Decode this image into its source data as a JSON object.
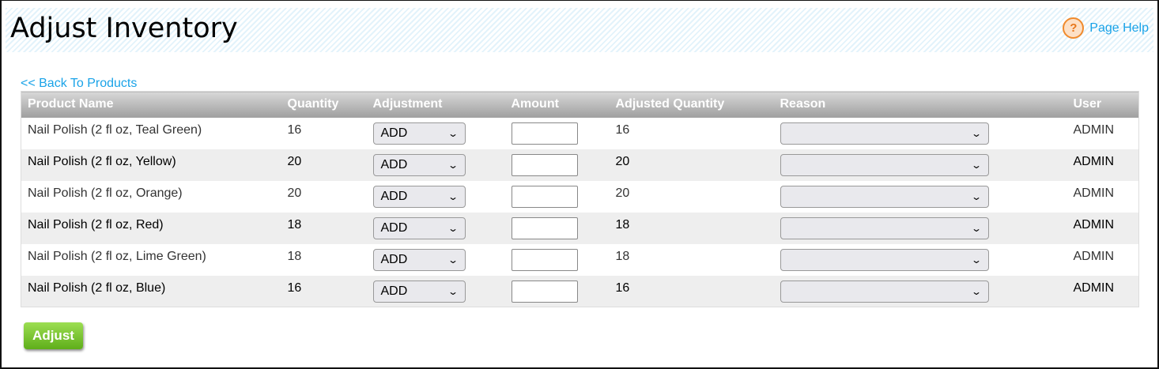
{
  "header": {
    "title": "Adjust Inventory",
    "help_label": "Page Help",
    "help_icon": "question-circle-icon"
  },
  "back_link": "<< Back To Products",
  "columns": [
    "Product Name",
    "Quantity",
    "Adjustment",
    "Amount",
    "Adjusted Quantity",
    "Reason",
    "User"
  ],
  "rows": [
    {
      "name": "Nail Polish (2 fl oz, Teal Green)",
      "quantity": "16",
      "adjustment": "ADD",
      "amount": "",
      "adjusted": "16",
      "reason": "",
      "user": "ADMIN"
    },
    {
      "name": "Nail Polish (2 fl oz, Yellow)",
      "quantity": "20",
      "adjustment": "ADD",
      "amount": "",
      "adjusted": "20",
      "reason": "",
      "user": "ADMIN"
    },
    {
      "name": "Nail Polish (2 fl oz, Orange)",
      "quantity": "20",
      "adjustment": "ADD",
      "amount": "",
      "adjusted": "20",
      "reason": "",
      "user": "ADMIN"
    },
    {
      "name": "Nail Polish (2 fl oz, Red)",
      "quantity": "18",
      "adjustment": "ADD",
      "amount": "",
      "adjusted": "18",
      "reason": "",
      "user": "ADMIN"
    },
    {
      "name": "Nail Polish (2 fl oz, Lime Green)",
      "quantity": "18",
      "adjustment": "ADD",
      "amount": "",
      "adjusted": "18",
      "reason": "",
      "user": "ADMIN"
    },
    {
      "name": "Nail Polish (2 fl oz, Blue)",
      "quantity": "16",
      "adjustment": "ADD",
      "amount": "",
      "adjusted": "16",
      "reason": "",
      "user": "ADMIN"
    }
  ],
  "adjust_button": "Adjust",
  "colors": {
    "link": "#1aa3e8",
    "button": "#6dbb22",
    "help": "#f08a2c"
  }
}
